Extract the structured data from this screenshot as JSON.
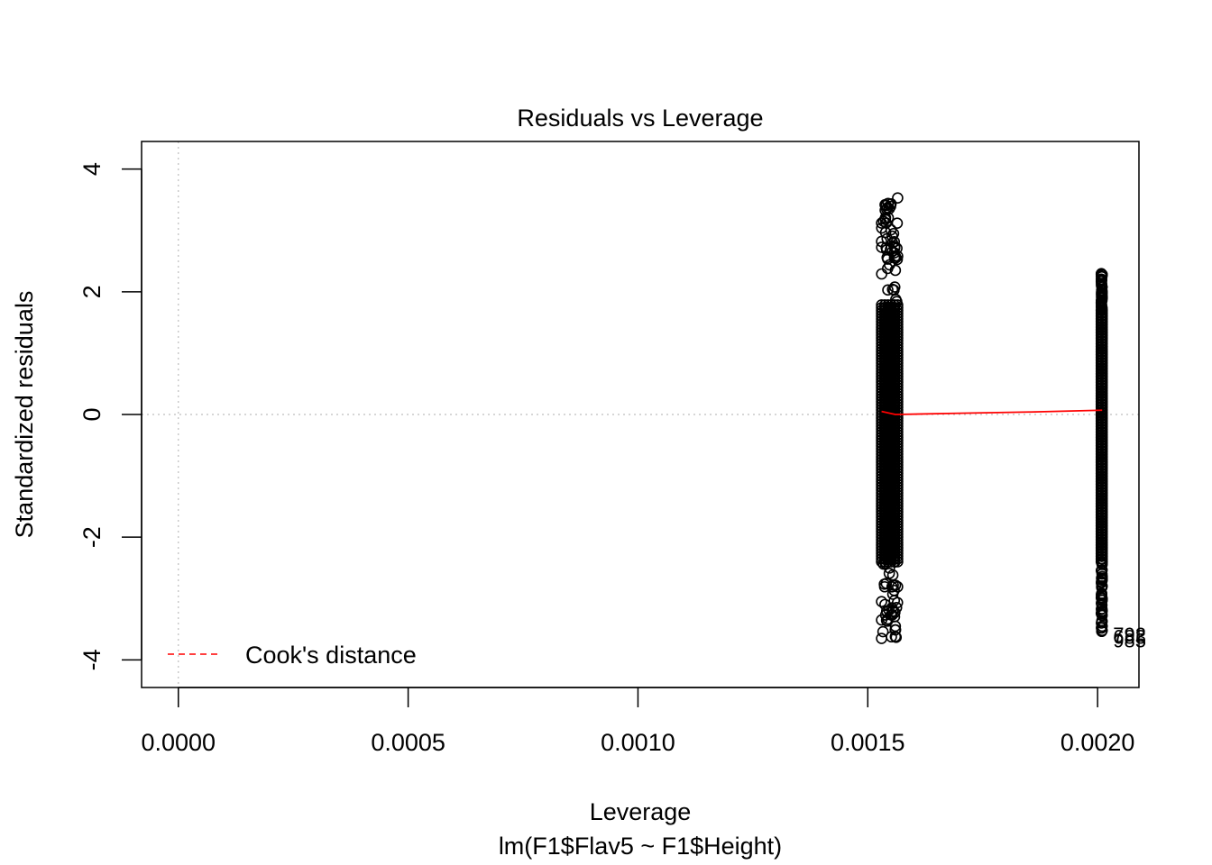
{
  "chart_data": {
    "type": "scatter",
    "title": "Residuals vs Leverage",
    "xlabel": "Leverage",
    "subtitle": "lm(F1$Flav5 ~ F1$Height)",
    "ylabel": "Standardized residuals",
    "xlim": [
      -8e-05,
      0.00209
    ],
    "ylim": [
      -4.45,
      4.45
    ],
    "xticks": [
      "0.0000",
      "0.0005",
      "0.0010",
      "0.0015",
      "0.0020"
    ],
    "xtick_values": [
      0.0,
      0.0005,
      0.001,
      0.0015,
      0.002
    ],
    "yticks": [
      "-4",
      "-2",
      "0",
      "2",
      "4"
    ],
    "ytick_values": [
      -4,
      -2,
      0,
      2,
      4
    ],
    "grid": false,
    "reference_lines": {
      "vertical_dotted_at_x": 0.0,
      "horizontal_dotted_at_y": 0.0
    },
    "series": [
      {
        "group": "leverage-0.00153",
        "leverage_range": [
          0.00153,
          0.001565
        ],
        "y_min": -3.65,
        "y_max": 3.55,
        "highlight_points": [
          {
            "x": 0.001565,
            "y": 3.53
          },
          {
            "x": 0.00153,
            "y": 3.12
          },
          {
            "x": 0.00154,
            "y": 3.12
          },
          {
            "x": 0.00153,
            "y": 2.82
          },
          {
            "x": 0.00154,
            "y": 2.72
          },
          {
            "x": 0.00156,
            "y": 2.58
          },
          {
            "x": 0.001565,
            "y": 2.58
          },
          {
            "x": 0.00156,
            "y": 2.35
          },
          {
            "x": 0.00153,
            "y": -3.05
          },
          {
            "x": 0.00153,
            "y": -3.35
          },
          {
            "x": 0.00156,
            "y": -3.45
          },
          {
            "x": 0.00153,
            "y": -3.65
          },
          {
            "x": 0.00156,
            "y": -3.62
          }
        ]
      },
      {
        "group": "leverage-0.00201",
        "leverage_range": [
          0.002008,
          0.00201
        ],
        "y_min": -3.6,
        "y_max": 2.3,
        "highlight_points": [
          {
            "x": 0.00201,
            "y": 2.28
          },
          {
            "x": 0.00201,
            "y": 1.9
          },
          {
            "x": 0.00201,
            "y": -2.7
          },
          {
            "x": 0.00201,
            "y": -3.0
          },
          {
            "x": 0.00201,
            "y": -3.2
          },
          {
            "x": 0.00201,
            "y": -3.45
          },
          {
            "x": 0.00201,
            "y": -3.52
          }
        ]
      }
    ],
    "smooth_line": [
      {
        "x": 0.00153,
        "y": 0.05
      },
      {
        "x": 0.00156,
        "y": 0.0
      },
      {
        "x": 0.0017,
        "y": 0.02
      },
      {
        "x": 0.00185,
        "y": 0.04
      },
      {
        "x": 0.00201,
        "y": 0.07
      }
    ],
    "smooth_color": "#ff0000",
    "point_labels": [
      {
        "text": "792",
        "x": 0.00201,
        "y": -3.58
      },
      {
        "text": "683",
        "x": 0.00201,
        "y": -3.62
      },
      {
        "text": "985",
        "x": 0.00201,
        "y": -3.68
      }
    ],
    "legend": {
      "position": "bottom-left",
      "entries": [
        {
          "label": "Cook's distance",
          "color": "#ff0000",
          "style": "dashed"
        }
      ]
    },
    "colors": {
      "points": "#000000",
      "reference": "#bebebe",
      "smooth": "#ff0000"
    }
  }
}
